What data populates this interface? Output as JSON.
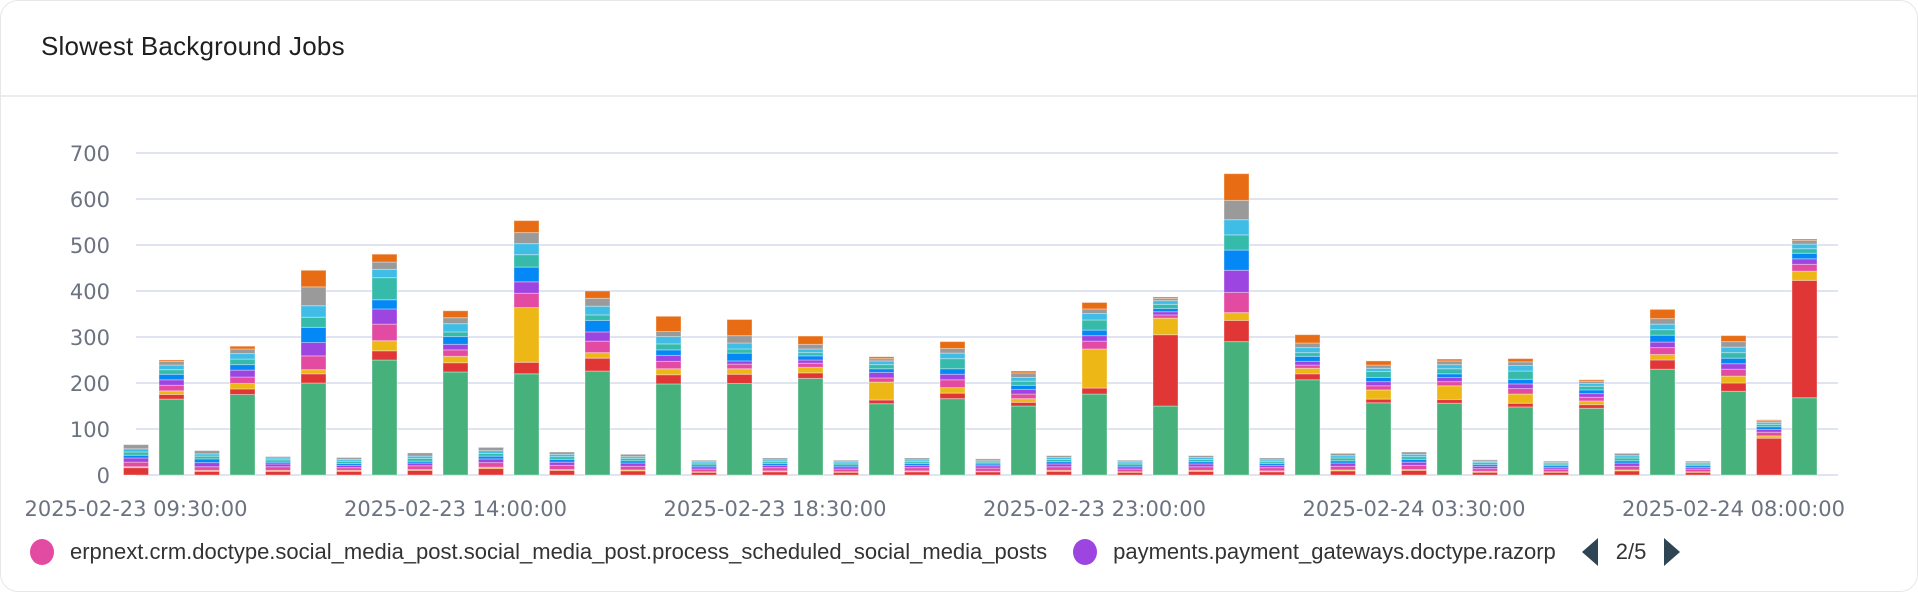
{
  "header": {
    "title": "Slowest Background Jobs"
  },
  "legend": {
    "items": [
      {
        "label": "erpnext.crm.doctype.social_media_post.social_media_post.process_scheduled_social_media_posts",
        "color": "#e34ba3"
      },
      {
        "label": "payments.payment_gateways.doctype.razorp",
        "color": "#9d45e0"
      }
    ],
    "page": "2/5"
  },
  "chart_data": {
    "type": "bar",
    "stacked": true,
    "title": "Slowest Background Jobs",
    "xlabel": "",
    "ylabel": "",
    "ylim": [
      0,
      700
    ],
    "y_ticks": [
      "0",
      "100",
      "200",
      "300",
      "400",
      "500",
      "600",
      "700"
    ],
    "x_start": "2025-02-23 09:30:00",
    "interval_minutes": 30,
    "x_ticks": [
      {
        "index": 0,
        "label": "2025-02-23 09:30:00"
      },
      {
        "index": 9,
        "label": "2025-02-23 14:00:00"
      },
      {
        "index": 18,
        "label": "2025-02-23 18:30:00"
      },
      {
        "index": 27,
        "label": "2025-02-23 23:00:00"
      },
      {
        "index": 36,
        "label": "2025-02-24 03:30:00"
      },
      {
        "index": 45,
        "label": "2025-02-24 08:00:00"
      }
    ],
    "grid": true,
    "legend_position": "bottom",
    "series_colors": [
      "#46b17b",
      "#e03636",
      "#edb816",
      "#e34ba3",
      "#9d45e0",
      "#0488f5",
      "#36bbab",
      "#3fbde6",
      "#9a9a9a",
      "#e86c13"
    ],
    "stacks": [
      [
        0,
        16,
        2,
        10,
        9,
        6,
        7,
        7,
        9,
        0
      ],
      [
        165,
        10,
        8,
        12,
        12,
        12,
        10,
        10,
        8,
        3
      ],
      [
        0,
        8,
        2,
        8,
        9,
        8,
        6,
        5,
        7,
        0
      ],
      [
        175,
        12,
        12,
        14,
        15,
        12,
        12,
        12,
        10,
        6
      ],
      [
        0,
        8,
        2,
        8,
        6,
        4,
        5,
        4,
        3,
        0
      ],
      [
        200,
        20,
        9,
        30,
        29,
        33,
        22,
        25,
        41,
        36
      ],
      [
        0,
        8,
        2,
        6,
        5,
        4,
        5,
        4,
        4,
        0
      ],
      [
        250,
        20,
        22,
        36,
        33,
        20,
        48,
        18,
        16,
        17
      ],
      [
        0,
        10,
        2,
        8,
        6,
        4,
        6,
        5,
        7,
        0
      ],
      [
        224,
        20,
        14,
        14,
        12,
        17,
        10,
        18,
        13,
        15
      ],
      [
        0,
        14,
        3,
        10,
        8,
        6,
        6,
        6,
        7,
        0
      ],
      [
        220,
        25,
        119,
        31,
        25,
        32,
        27,
        24,
        24,
        26
      ],
      [
        0,
        10,
        2,
        9,
        7,
        6,
        6,
        5,
        5,
        0
      ],
      [
        226,
        28,
        12,
        25,
        20,
        25,
        12,
        19,
        17,
        16
      ],
      [
        0,
        9,
        2,
        8,
        7,
        5,
        5,
        4,
        5,
        0
      ],
      [
        198,
        20,
        13,
        16,
        13,
        12,
        13,
        16,
        11,
        33
      ],
      [
        0,
        6,
        1,
        6,
        5,
        4,
        4,
        3,
        3,
        0
      ],
      [
        199,
        20,
        12,
        10,
        7,
        17,
        9,
        13,
        16,
        35
      ],
      [
        0,
        7,
        2,
        7,
        5,
        4,
        4,
        4,
        4,
        0
      ],
      [
        210,
        12,
        12,
        9,
        7,
        9,
        7,
        8,
        10,
        18
      ],
      [
        0,
        6,
        1,
        6,
        5,
        4,
        4,
        3,
        3,
        0
      ],
      [
        155,
        8,
        39,
        9,
        12,
        8,
        9,
        8,
        5,
        4
      ],
      [
        0,
        7,
        2,
        7,
        5,
        4,
        4,
        4,
        4,
        0
      ],
      [
        166,
        12,
        12,
        17,
        12,
        12,
        22,
        12,
        10,
        15
      ],
      [
        0,
        7,
        1,
        7,
        5,
        4,
        4,
        3,
        4,
        0
      ],
      [
        150,
        8,
        8,
        10,
        10,
        9,
        9,
        8,
        10,
        4
      ],
      [
        0,
        8,
        2,
        8,
        6,
        5,
        5,
        4,
        4,
        0
      ],
      [
        176,
        13,
        85,
        17,
        12,
        12,
        22,
        14,
        10,
        14
      ],
      [
        0,
        6,
        1,
        6,
        5,
        4,
        4,
        3,
        3,
        0
      ],
      [
        150,
        155,
        36,
        7,
        7,
        7,
        9,
        8,
        5,
        3
      ],
      [
        0,
        8,
        2,
        8,
        6,
        5,
        5,
        4,
        4,
        0
      ],
      [
        290,
        46,
        17,
        44,
        48,
        44,
        33,
        33,
        42,
        58
      ],
      [
        0,
        7,
        2,
        7,
        5,
        4,
        4,
        4,
        4,
        0
      ],
      [
        207,
        13,
        12,
        7,
        8,
        11,
        8,
        11,
        10,
        18
      ],
      [
        0,
        9,
        2,
        8,
        7,
        5,
        6,
        5,
        5,
        0
      ],
      [
        157,
        8,
        20,
        9,
        9,
        9,
        13,
        7,
        7,
        9
      ],
      [
        0,
        10,
        2,
        9,
        7,
        6,
        6,
        5,
        5,
        0
      ],
      [
        156,
        8,
        30,
        9,
        9,
        8,
        11,
        9,
        8,
        4
      ],
      [
        0,
        6,
        2,
        6,
        5,
        4,
        4,
        3,
        3,
        0
      ],
      [
        148,
        8,
        20,
        12,
        10,
        10,
        18,
        12,
        8,
        7
      ],
      [
        0,
        6,
        1,
        6,
        4,
        4,
        3,
        3,
        3,
        0
      ],
      [
        145,
        8,
        8,
        8,
        8,
        8,
        8,
        6,
        5,
        3
      ],
      [
        0,
        9,
        2,
        8,
        7,
        5,
        6,
        5,
        5,
        0
      ],
      [
        230,
        20,
        12,
        15,
        12,
        15,
        12,
        12,
        12,
        20
      ],
      [
        0,
        6,
        1,
        6,
        4,
        4,
        3,
        3,
        3,
        0
      ],
      [
        182,
        18,
        15,
        15,
        12,
        12,
        12,
        12,
        12,
        13
      ],
      [
        0,
        80,
        5,
        8,
        6,
        6,
        5,
        4,
        4,
        2
      ],
      [
        168,
        255,
        20,
        15,
        12,
        12,
        10,
        10,
        8,
        3
      ]
    ]
  }
}
